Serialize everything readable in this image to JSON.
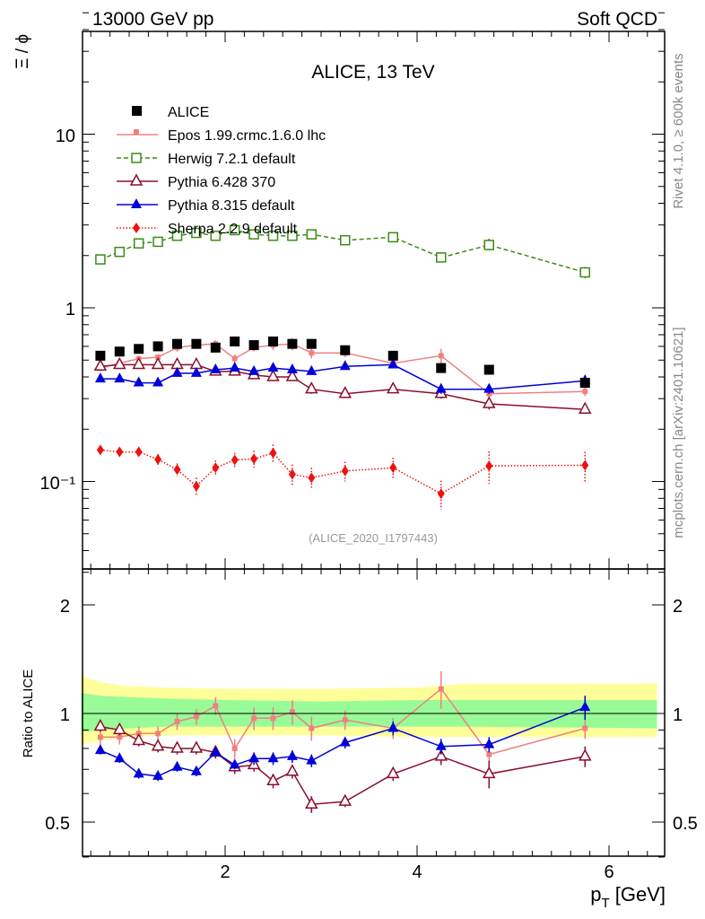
{
  "header": {
    "left": "13000 GeV pp",
    "right": "Soft QCD"
  },
  "side_text": {
    "rivet": "Rivet 4.1.0, ≥ 600k events",
    "mcplots": "mcplots.cern.ch [arXiv:2401.10621]"
  },
  "main_panel": {
    "title": "ALICE, 13 TeV",
    "ylabel": "Ξ / ϕ",
    "analysis_tag": "(ALICE_2020_I1797443)",
    "ytick_labels": [
      "10",
      "1",
      "10⁻¹"
    ]
  },
  "ratio_panel": {
    "ylabel": "Ratio to ALICE",
    "ytick_labels": [
      "2",
      "1",
      "0.5"
    ],
    "ytick_labels_right": [
      "2",
      "1",
      "0.5"
    ]
  },
  "xaxis": {
    "label": "p",
    "label_sub": "T",
    "label_unit": " [GeV]",
    "tick_labels": [
      "2",
      "4",
      "6"
    ]
  },
  "colors": {
    "data": "#000000",
    "epos": "#f08080",
    "herwig": "#3a8c14",
    "pythia6": "#8b0f2a",
    "pythia8": "#0000d8",
    "sherpa": "#ee1111",
    "band_inner": "#98fb98",
    "band_outer": "#ffff99"
  },
  "chart_data": {
    "type": "scatter",
    "title": "ALICE, 13 TeV",
    "xlabel": "p_T [GeV]",
    "ylabel": "Ξ / ϕ",
    "ratio_ylabel": "Ratio to ALICE",
    "xlim": [
      0.5,
      6.6
    ],
    "ylim": [
      0.03,
      50
    ],
    "yscale": "log",
    "ratio_ylim": [
      0.37,
      2.35
    ],
    "ratio_yscale": "log",
    "x": [
      0.7,
      0.9,
      1.1,
      1.3,
      1.5,
      1.7,
      1.9,
      2.1,
      2.3,
      2.5,
      2.7,
      2.9,
      3.25,
      3.75,
      4.25,
      4.75,
      5.75
    ],
    "legend_entries": [
      "ALICE",
      "Epos 1.99.crmc.1.6.0 lhc",
      "Herwig 7.2.1 default",
      "Pythia 6.428 370",
      "Pythia 8.315 default",
      "Sherpa 2.2.9 default"
    ],
    "series": [
      {
        "name": "ALICE",
        "key": "data",
        "marker": "square",
        "values": [
          0.53,
          0.56,
          0.58,
          0.6,
          0.62,
          0.62,
          0.59,
          0.64,
          0.61,
          0.64,
          0.62,
          0.62,
          0.57,
          0.53,
          0.45,
          0.44,
          0.37
        ]
      },
      {
        "name": "Epos 1.99.crmc.1.6.0 lhc",
        "key": "epos",
        "marker": "cross",
        "line": "solid",
        "values": [
          0.45,
          0.48,
          0.51,
          0.52,
          0.59,
          0.61,
          0.62,
          0.51,
          0.59,
          0.61,
          0.62,
          0.55,
          0.55,
          0.48,
          0.53,
          0.32,
          0.33
        ],
        "errors": [
          0.02,
          0.02,
          0.02,
          0.02,
          0.03,
          0.03,
          0.03,
          0.03,
          0.03,
          0.04,
          0.05,
          0.04,
          0.03,
          0.03,
          0.05,
          0.02,
          0.02
        ]
      },
      {
        "name": "Herwig 7.2.1 default",
        "key": "herwig",
        "marker": "open-square",
        "line": "dashed",
        "values": [
          1.9,
          2.1,
          2.35,
          2.4,
          2.6,
          2.7,
          2.6,
          2.8,
          2.65,
          2.6,
          2.6,
          2.65,
          2.45,
          2.55,
          1.95,
          2.3,
          1.6
        ],
        "errors": [
          0.05,
          0.05,
          0.06,
          0.06,
          0.07,
          0.08,
          0.08,
          0.09,
          0.09,
          0.1,
          0.1,
          0.1,
          0.08,
          0.1,
          0.1,
          0.2,
          0.12
        ]
      },
      {
        "name": "Pythia 6.428 370",
        "key": "pythia6",
        "marker": "open-triangle",
        "line": "solid",
        "values": [
          0.46,
          0.47,
          0.47,
          0.47,
          0.47,
          0.47,
          0.43,
          0.43,
          0.41,
          0.4,
          0.4,
          0.34,
          0.32,
          0.34,
          0.32,
          0.28,
          0.26
        ],
        "errors": [
          0.02,
          0.02,
          0.02,
          0.02,
          0.02,
          0.02,
          0.02,
          0.02,
          0.02,
          0.02,
          0.02,
          0.02,
          0.015,
          0.015,
          0.02,
          0.02,
          0.015
        ]
      },
      {
        "name": "Pythia 8.315 default",
        "key": "pythia8",
        "marker": "triangle",
        "line": "solid",
        "values": [
          0.39,
          0.39,
          0.37,
          0.37,
          0.42,
          0.42,
          0.44,
          0.45,
          0.43,
          0.45,
          0.44,
          0.43,
          0.46,
          0.47,
          0.34,
          0.34,
          0.38
        ],
        "errors": [
          0.01,
          0.01,
          0.01,
          0.01,
          0.01,
          0.01,
          0.01,
          0.01,
          0.01,
          0.01,
          0.01,
          0.01,
          0.015,
          0.02,
          0.02,
          0.02,
          0.03
        ]
      },
      {
        "name": "Sherpa 2.2.9 default",
        "key": "sherpa",
        "marker": "diamond",
        "line": "dotted",
        "values": [
          0.152,
          0.148,
          0.148,
          0.134,
          0.117,
          0.094,
          0.12,
          0.133,
          0.135,
          0.146,
          0.11,
          0.105,
          0.115,
          0.12,
          0.085,
          0.123,
          0.124
        ],
        "errors": [
          0.008,
          0.008,
          0.009,
          0.01,
          0.01,
          0.011,
          0.012,
          0.013,
          0.015,
          0.017,
          0.015,
          0.015,
          0.015,
          0.017,
          0.016,
          0.026,
          0.024
        ]
      }
    ],
    "ratios": [
      {
        "key": "epos",
        "values": [
          0.86,
          0.86,
          0.88,
          0.88,
          0.95,
          0.98,
          1.05,
          0.8,
          0.97,
          0.97,
          1.01,
          0.91,
          0.96,
          0.91,
          1.17,
          0.77,
          0.91
        ],
        "errors": [
          0.04,
          0.04,
          0.04,
          0.04,
          0.05,
          0.05,
          0.06,
          0.05,
          0.07,
          0.07,
          0.08,
          0.07,
          0.06,
          0.06,
          0.14,
          0.05,
          0.06
        ]
      },
      {
        "key": "pythia6",
        "values": [
          0.92,
          0.9,
          0.84,
          0.81,
          0.8,
          0.8,
          0.78,
          0.71,
          0.72,
          0.65,
          0.69,
          0.56,
          0.57,
          0.68,
          0.76,
          0.68,
          0.76
        ],
        "errors": [
          0.03,
          0.03,
          0.03,
          0.03,
          0.03,
          0.03,
          0.03,
          0.03,
          0.03,
          0.03,
          0.03,
          0.03,
          0.02,
          0.03,
          0.04,
          0.06,
          0.05
        ]
      },
      {
        "key": "pythia8",
        "values": [
          0.79,
          0.75,
          0.68,
          0.67,
          0.71,
          0.69,
          0.78,
          0.72,
          0.75,
          0.75,
          0.76,
          0.74,
          0.83,
          0.91,
          0.81,
          0.82,
          1.04
        ],
        "errors": [
          0.02,
          0.02,
          0.02,
          0.02,
          0.02,
          0.02,
          0.02,
          0.02,
          0.03,
          0.03,
          0.03,
          0.03,
          0.03,
          0.04,
          0.04,
          0.04,
          0.08
        ]
      }
    ],
    "band_inner": [
      [
        0.5,
        1.14,
        0.89
      ],
      [
        0.7,
        1.12,
        0.9
      ],
      [
        1.0,
        1.11,
        0.91
      ],
      [
        1.4,
        1.1,
        0.92
      ],
      [
        2.0,
        1.09,
        0.92
      ],
      [
        3.0,
        1.08,
        0.92
      ],
      [
        4.0,
        1.09,
        0.92
      ],
      [
        4.5,
        1.09,
        0.92
      ],
      [
        6.5,
        1.09,
        0.91
      ]
    ],
    "band_outer": [
      [
        0.5,
        1.27,
        0.82
      ],
      [
        0.7,
        1.22,
        0.84
      ],
      [
        1.0,
        1.19,
        0.86
      ],
      [
        1.4,
        1.18,
        0.87
      ],
      [
        2.0,
        1.17,
        0.87
      ],
      [
        3.0,
        1.17,
        0.87
      ],
      [
        4.0,
        1.18,
        0.86
      ],
      [
        4.5,
        1.21,
        0.86
      ],
      [
        6.5,
        1.21,
        0.86
      ]
    ]
  }
}
